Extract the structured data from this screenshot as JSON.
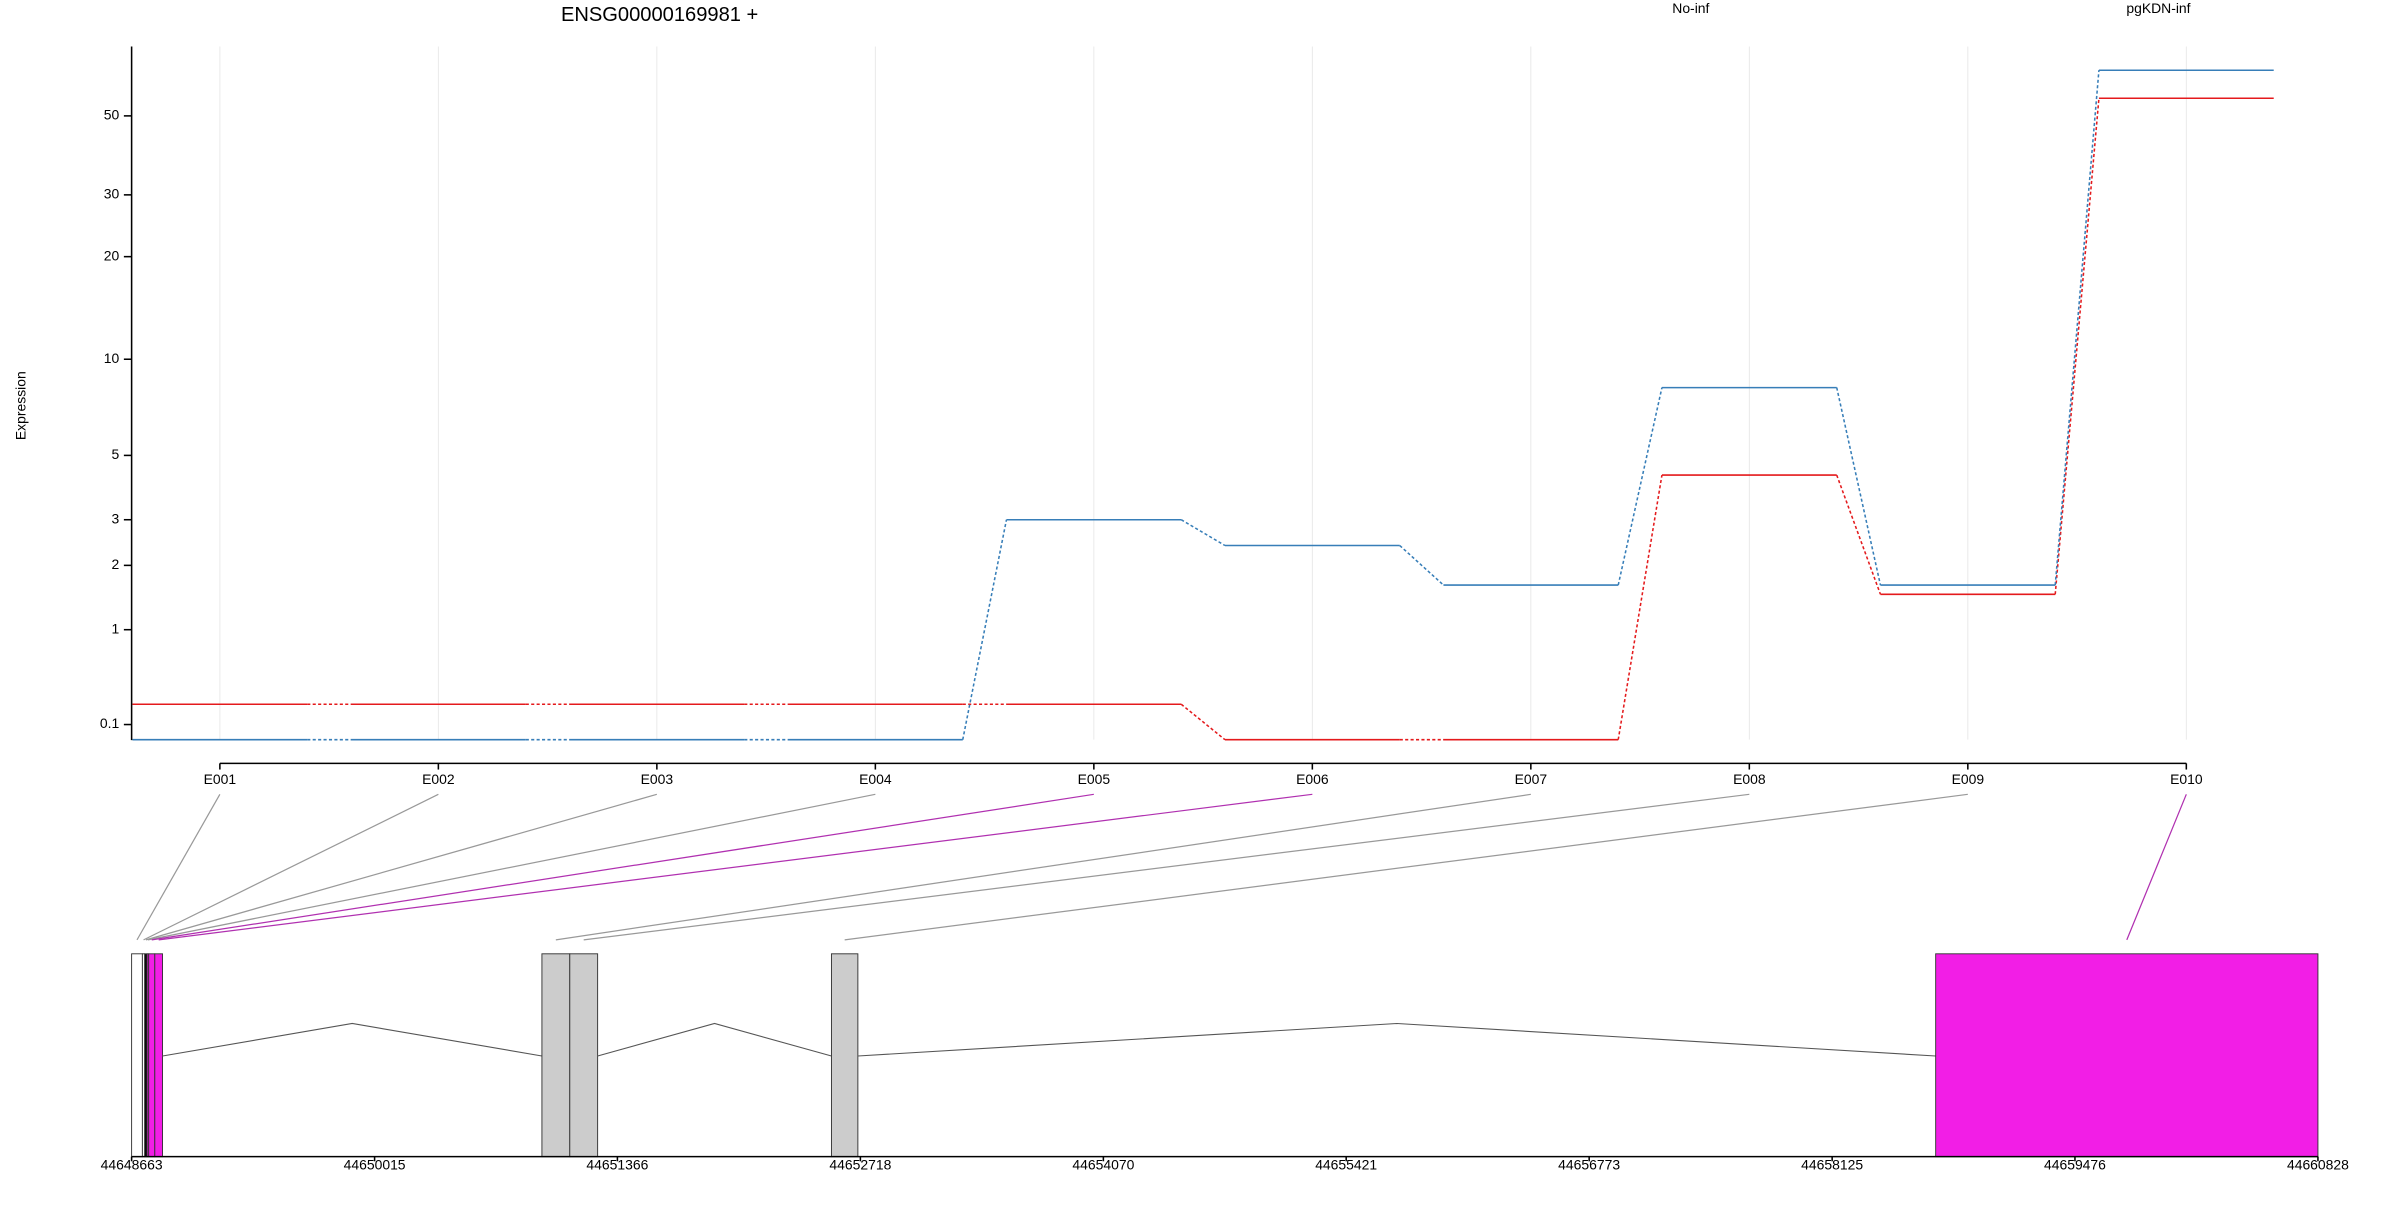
{
  "chart_data": [
    {
      "type": "line",
      "title": "ENSG00000169981 +",
      "y_label": "Expression",
      "yscale": "log1p",
      "grid": true,
      "categories": [
        "E001",
        "E002",
        "E003",
        "E004",
        "E005",
        "E006",
        "E007",
        "E008",
        "E009",
        "E010"
      ],
      "series": [
        {
          "name": "No-inf",
          "color": "#e41a1c",
          "values": [
            0.25,
            0.25,
            0.25,
            0.25,
            0.25,
            0,
            0,
            4.3,
            1.5,
            56
          ]
        },
        {
          "name": "pgKDN-inf",
          "color": "#377eb8",
          "values": [
            0,
            0,
            0,
            0,
            3,
            2.4,
            1.65,
            8.2,
            1.65,
            67
          ]
        }
      ],
      "ylim": [
        0,
        78
      ],
      "yticks": [
        0.1,
        1,
        2,
        3,
        5,
        10,
        20,
        30,
        50
      ]
    },
    {
      "type": "gene-model",
      "xlim": [
        44648663,
        44660828
      ],
      "xticks": [
        44648663,
        44650015,
        44651366,
        44652718,
        44654070,
        44655421,
        44656773,
        44658125,
        44659476,
        44660828
      ],
      "exons": [
        {
          "start": 44648663,
          "end": 44648723,
          "color": "#ffffff",
          "significant": false
        },
        {
          "start": 44648723,
          "end": 44648736,
          "color": "#ffffff",
          "significant": false
        },
        {
          "start": 44648736,
          "end": 44648749,
          "color": "#000000",
          "significant": false
        },
        {
          "start": 44648749,
          "end": 44648758,
          "color": "#f21ee6",
          "significant": false
        },
        {
          "start": 44648758,
          "end": 44648792,
          "color": "#f21ee6",
          "significant": true
        },
        {
          "start": 44648792,
          "end": 44648835,
          "color": "#f21ee6",
          "significant": true
        },
        {
          "start": 44650946,
          "end": 44651101,
          "color": "#cccccc",
          "significant": false
        },
        {
          "start": 44651101,
          "end": 44651256,
          "color": "#cccccc",
          "significant": false
        },
        {
          "start": 44652557,
          "end": 44652704,
          "color": "#cccccc",
          "significant": false
        },
        {
          "start": 44658701,
          "end": 44660828,
          "color": "#f21ee6",
          "significant": true
        }
      ]
    }
  ]
}
